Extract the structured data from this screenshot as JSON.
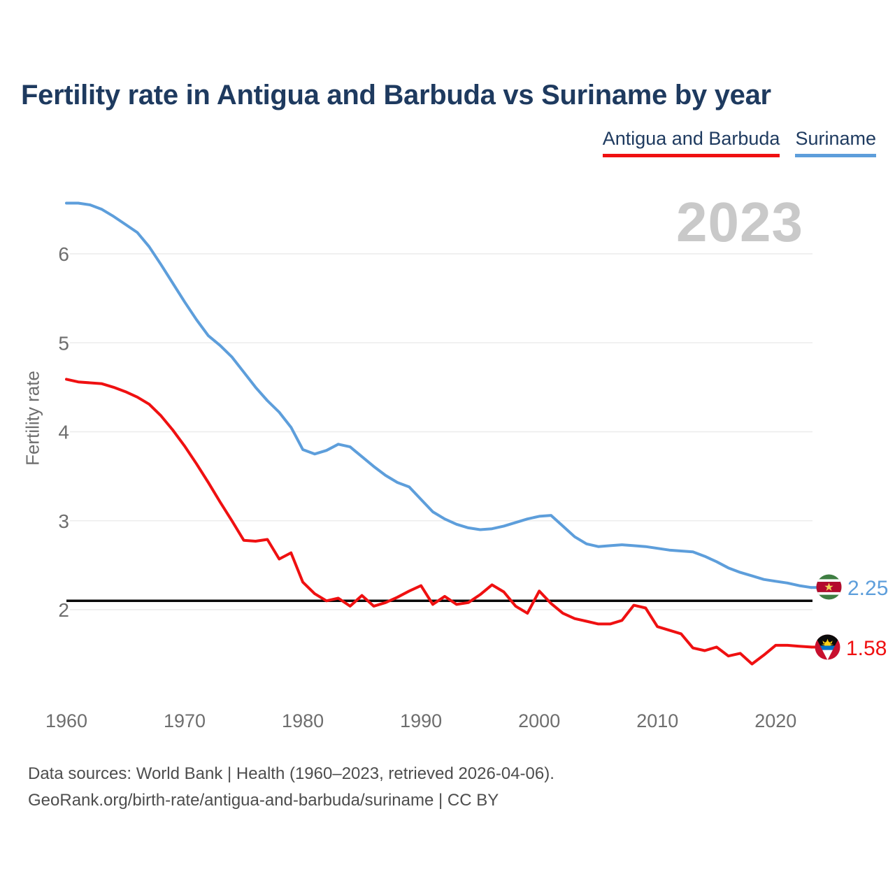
{
  "title": "Fertility rate in Antigua and Barbuda vs Suriname by year",
  "watermark": "2023",
  "legend": [
    {
      "label": "Antigua and Barbuda",
      "color": "#ef1011"
    },
    {
      "label": "Suriname",
      "color": "#5d9edb"
    }
  ],
  "footer": {
    "line1": "Data sources: World Bank | Health (1960–2023, retrieved 2026-04-06).",
    "line2": "GeoRank.org/birth-rate/antigua-and-barbuda/suriname | CC BY"
  },
  "chart_data": {
    "type": "line",
    "title": "Fertility rate in Antigua and Barbuda vs Suriname by year",
    "xlabel": "",
    "ylabel": "Fertility rate",
    "ylim": [
      1.3,
      6.8
    ],
    "xlim": [
      1960,
      2023
    ],
    "grid": "horizontal",
    "legend_position": "top-right",
    "yticks": [
      2,
      3,
      4,
      5,
      6
    ],
    "xticks": [
      1960,
      1970,
      1980,
      1990,
      2000,
      2010,
      2020
    ],
    "reference_line": 2.1,
    "x": [
      1960,
      1961,
      1962,
      1963,
      1964,
      1965,
      1966,
      1967,
      1968,
      1969,
      1970,
      1971,
      1972,
      1973,
      1974,
      1975,
      1976,
      1977,
      1978,
      1979,
      1980,
      1981,
      1982,
      1983,
      1984,
      1985,
      1986,
      1987,
      1988,
      1989,
      1990,
      1991,
      1992,
      1993,
      1994,
      1995,
      1996,
      1997,
      1998,
      1999,
      2000,
      2001,
      2002,
      2003,
      2004,
      2005,
      2006,
      2007,
      2008,
      2009,
      2010,
      2011,
      2012,
      2013,
      2014,
      2015,
      2016,
      2017,
      2018,
      2019,
      2020,
      2021,
      2022,
      2023
    ],
    "series": [
      {
        "name": "Antigua and Barbuda",
        "slug": "antigua-and-barbuda",
        "color": "#ef1011",
        "end_label": "1.58",
        "values": [
          4.59,
          4.56,
          4.55,
          4.54,
          4.5,
          4.45,
          4.39,
          4.31,
          4.18,
          4.02,
          3.84,
          3.64,
          3.43,
          3.21,
          3.0,
          2.78,
          2.77,
          2.79,
          2.57,
          2.64,
          2.31,
          2.18,
          2.1,
          2.13,
          2.04,
          2.16,
          2.04,
          2.08,
          2.14,
          2.21,
          2.27,
          2.06,
          2.15,
          2.06,
          2.08,
          2.17,
          2.28,
          2.2,
          2.04,
          1.96,
          2.21,
          2.07,
          1.96,
          1.9,
          1.87,
          1.84,
          1.84,
          1.88,
          2.05,
          2.02,
          1.81,
          1.77,
          1.73,
          1.57,
          1.54,
          1.58,
          1.48,
          1.51,
          1.39,
          1.49,
          1.6,
          1.6,
          1.59,
          1.58
        ]
      },
      {
        "name": "Suriname",
        "slug": "suriname",
        "color": "#5d9edb",
        "end_label": "2.25",
        "values": [
          6.57,
          6.57,
          6.55,
          6.5,
          6.42,
          6.33,
          6.24,
          6.08,
          5.88,
          5.67,
          5.46,
          5.26,
          5.08,
          4.97,
          4.84,
          4.67,
          4.5,
          4.35,
          4.22,
          4.05,
          3.8,
          3.75,
          3.79,
          3.86,
          3.83,
          3.72,
          3.61,
          3.51,
          3.43,
          3.38,
          3.24,
          3.1,
          3.02,
          2.96,
          2.92,
          2.9,
          2.91,
          2.94,
          2.98,
          3.02,
          3.05,
          3.06,
          2.94,
          2.82,
          2.74,
          2.71,
          2.72,
          2.73,
          2.72,
          2.71,
          2.69,
          2.67,
          2.66,
          2.65,
          2.6,
          2.54,
          2.47,
          2.42,
          2.38,
          2.34,
          2.32,
          2.3,
          2.27,
          2.25
        ]
      }
    ]
  }
}
